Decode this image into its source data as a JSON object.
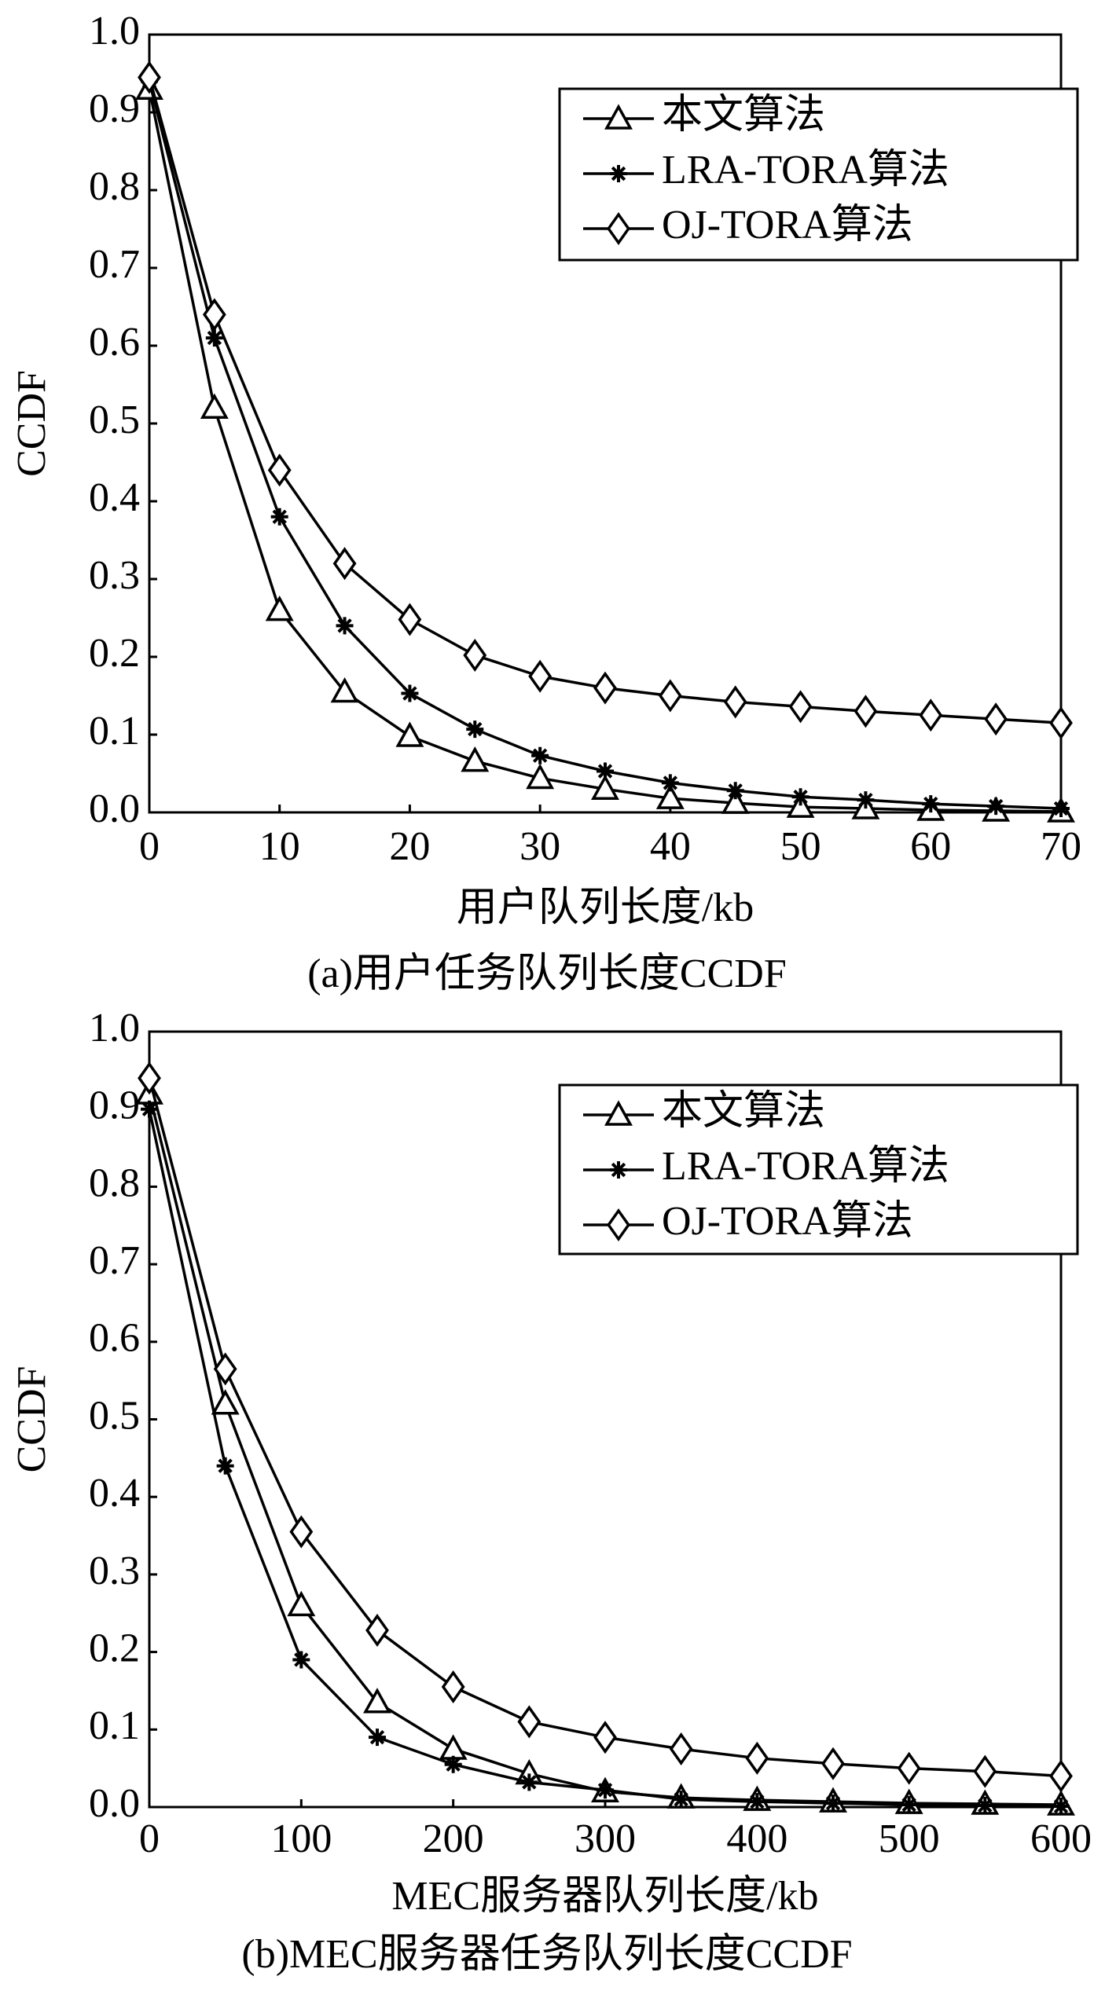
{
  "chart_data": [
    {
      "type": "line",
      "y_label": "CCDF",
      "x_label": "用户队列长度/kb",
      "caption": "(a)用户任务队列长度CCDF",
      "x": [
        0,
        5,
        10,
        15,
        20,
        25,
        30,
        35,
        40,
        45,
        50,
        55,
        60,
        65,
        70
      ],
      "xlim": [
        0,
        70
      ],
      "xticks": [
        0,
        10,
        20,
        30,
        40,
        50,
        60,
        70
      ],
      "ylim": [
        0,
        1
      ],
      "yticks": [
        {
          "value": 0,
          "label": "0.0"
        },
        0.1,
        0.2,
        0.3,
        0.4,
        0.5,
        0.6,
        0.7,
        0.8,
        0.9,
        {
          "value": 1,
          "label": "1.0"
        }
      ],
      "legend": "upper right",
      "series": [
        {
          "name": "本文算法",
          "color": "#000000",
          "marker": "triangle",
          "values": [
            0.93,
            0.52,
            0.26,
            0.155,
            0.098,
            0.066,
            0.044,
            0.03,
            0.018,
            0.012,
            0.007,
            0.005,
            0.003,
            0.002,
            0.001
          ]
        },
        {
          "name": "LRA-TORA算法",
          "color": "#000000",
          "marker": "asterisk",
          "values": [
            0.94,
            0.61,
            0.38,
            0.24,
            0.153,
            0.107,
            0.073,
            0.053,
            0.038,
            0.028,
            0.02,
            0.016,
            0.011,
            0.008,
            0.005
          ]
        },
        {
          "name": "OJ-TORA算法",
          "color": "#000000",
          "marker": "diamond",
          "values": [
            0.945,
            0.64,
            0.44,
            0.32,
            0.248,
            0.202,
            0.175,
            0.16,
            0.15,
            0.142,
            0.136,
            0.13,
            0.125,
            0.12,
            0.115
          ]
        }
      ]
    },
    {
      "type": "line",
      "y_label": "CCDF",
      "x_label": "MEC服务器队列长度/kb",
      "caption": "(b)MEC服务器任务队列长度CCDF",
      "x": [
        0,
        50,
        100,
        150,
        200,
        250,
        300,
        350,
        400,
        450,
        500,
        550,
        600
      ],
      "xlim": [
        0,
        600
      ],
      "xticks": [
        0,
        100,
        200,
        300,
        400,
        500,
        600
      ],
      "ylim": [
        0,
        1
      ],
      "yticks": [
        {
          "value": 0,
          "label": "0.0"
        },
        0.1,
        0.2,
        0.3,
        0.4,
        0.5,
        0.6,
        0.7,
        0.8,
        0.9,
        {
          "value": 1,
          "label": "1.0"
        }
      ],
      "legend": "upper right",
      "series": [
        {
          "name": "本文算法",
          "color": "#000000",
          "marker": "triangle",
          "values": [
            0.92,
            0.52,
            0.26,
            0.135,
            0.075,
            0.043,
            0.02,
            0.012,
            0.009,
            0.007,
            0.005,
            0.004,
            0.003
          ]
        },
        {
          "name": "LRA-TORA算法",
          "color": "#000000",
          "marker": "asterisk",
          "values": [
            0.9,
            0.44,
            0.19,
            0.09,
            0.055,
            0.032,
            0.022,
            0.01,
            0.007,
            0.005,
            0.003,
            0.002,
            0.001
          ]
        },
        {
          "name": "OJ-TORA算法",
          "color": "#000000",
          "marker": "diamond",
          "values": [
            0.94,
            0.565,
            0.355,
            0.228,
            0.155,
            0.11,
            0.09,
            0.075,
            0.063,
            0.056,
            0.05,
            0.046,
            0.04
          ]
        }
      ]
    }
  ]
}
